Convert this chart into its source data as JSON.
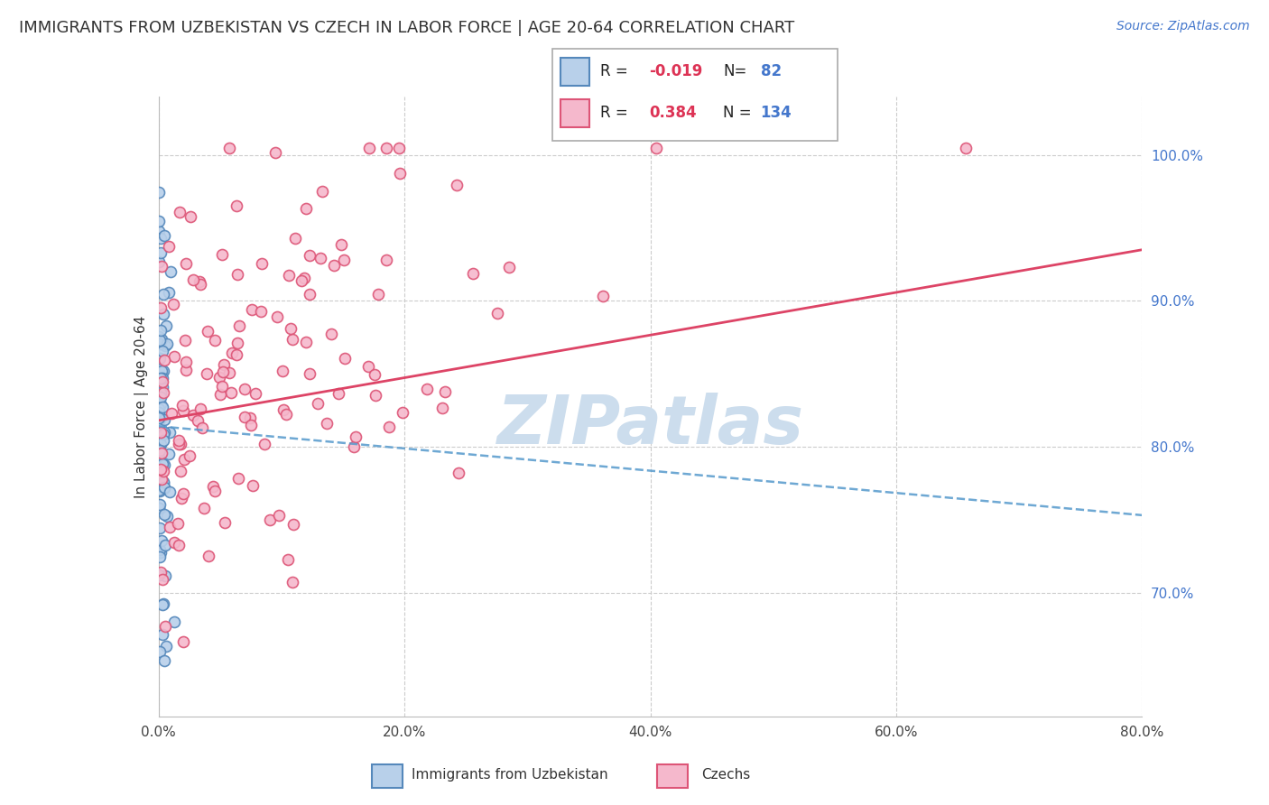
{
  "title": "IMMIGRANTS FROM UZBEKISTAN VS CZECH IN LABOR FORCE | AGE 20-64 CORRELATION CHART",
  "source": "Source: ZipAtlas.com",
  "ylabel": "In Labor Force | Age 20-64",
  "legend_label1": "Immigrants from Uzbekistan",
  "legend_label2": "Czechs",
  "R1": -0.019,
  "N1": 82,
  "R2": 0.384,
  "N2": 134,
  "color1": "#b8d0ea",
  "color2": "#f5b8cc",
  "edgecolor1": "#5588bb",
  "edgecolor2": "#dd5577",
  "regline_color1": "#5599cc",
  "regline_color2": "#dd4466",
  "xlim": [
    0.0,
    0.8
  ],
  "ylim": [
    0.615,
    1.04
  ],
  "xticks": [
    0.0,
    0.2,
    0.4,
    0.6,
    0.8
  ],
  "xtick_labels": [
    "0.0%",
    "20.0%",
    "40.0%",
    "60.0%",
    "80.0%"
  ],
  "yticks": [
    0.7,
    0.8,
    0.9,
    1.0
  ],
  "ytick_labels": [
    "70.0%",
    "80.0%",
    "90.0%",
    "100.0%"
  ],
  "background_color": "#ffffff",
  "grid_color": "#cccccc",
  "watermark_text": "ZIPatlas",
  "watermark_color": "#ccdded",
  "title_fontsize": 13,
  "axis_fontsize": 11,
  "tick_fontsize": 11,
  "source_fontsize": 10,
  "marker_size": 75,
  "marker_linewidth": 1.2,
  "regline1_x0": 0.0,
  "regline1_y0": 0.814,
  "regline1_x1": 0.8,
  "regline1_y1": 0.753,
  "regline2_x0": 0.0,
  "regline2_y0": 0.818,
  "regline2_x1": 0.8,
  "regline2_y1": 0.935
}
